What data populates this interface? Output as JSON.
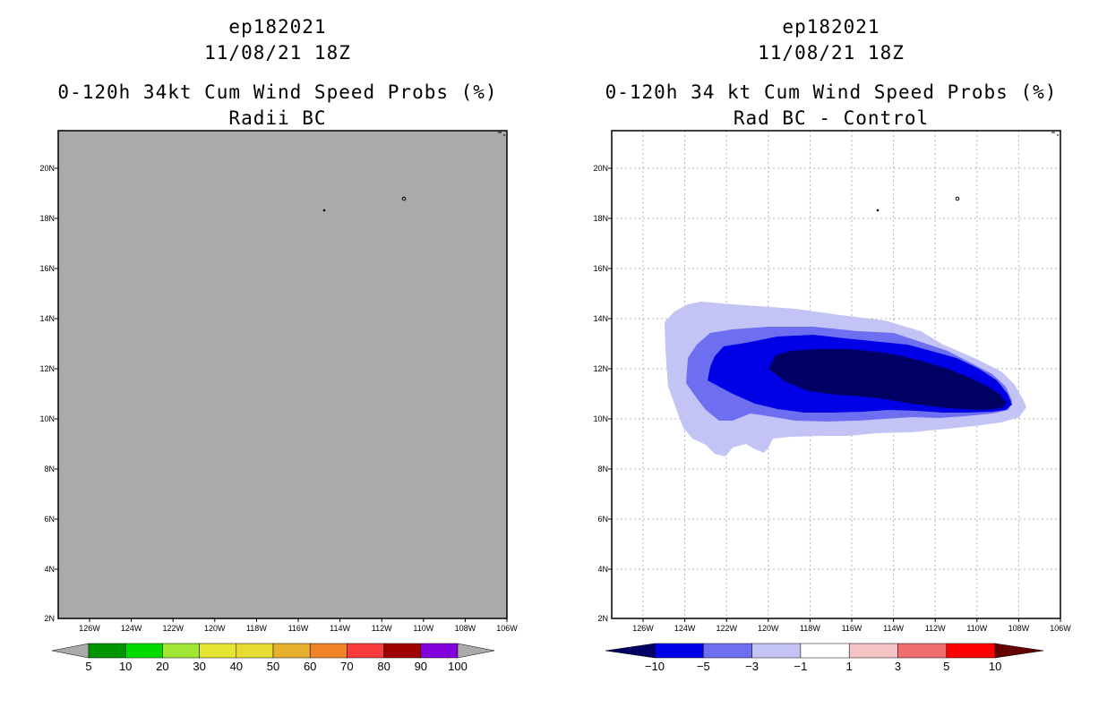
{
  "left": {
    "storm_id": "ep182021",
    "datetime": "11/08/21 18Z",
    "title": "0-120h 34kt Cum Wind Speed Probs (%)",
    "subtitle": "Radii BC",
    "lat_labels": [
      "20N",
      "18N",
      "16N",
      "14N",
      "12N",
      "10N",
      "8N",
      "6N",
      "4N",
      "2N"
    ],
    "lon_labels": [
      "126W",
      "124W",
      "122W",
      "120W",
      "118W",
      "116W",
      "114W",
      "112W",
      "110W",
      "108W",
      "106W"
    ],
    "colorbar": {
      "labels": [
        "5",
        "10",
        "20",
        "30",
        "40",
        "50",
        "60",
        "70",
        "80",
        "90",
        "100"
      ],
      "colors": [
        "#009600",
        "#00dc00",
        "#a0e632",
        "#e6e632",
        "#e6dc32",
        "#e6af2d",
        "#f08228",
        "#fa3c3c",
        "#a00000",
        "#8200dc"
      ],
      "end_color": "#aaaaaa"
    }
  },
  "right": {
    "storm_id": "ep182021",
    "datetime": "11/08/21 18Z",
    "title": "0-120h 34 kt Cum Wind Speed Probs (%)",
    "subtitle": "Rad BC - Control",
    "lat_labels": [
      "20N",
      "18N",
      "16N",
      "14N",
      "12N",
      "10N",
      "8N",
      "6N",
      "4N",
      "2N"
    ],
    "lon_labels": [
      "126W",
      "124W",
      "122W",
      "120W",
      "118W",
      "116W",
      "114W",
      "112W",
      "110W",
      "108W",
      "106W"
    ],
    "colorbar": {
      "labels": [
        "−10",
        "−5",
        "−3",
        "−1",
        "1",
        "3",
        "5",
        "10"
      ],
      "colors": [
        "#0000e6",
        "#6e6ef0",
        "#c3c3f5",
        "#ffffff",
        "#f5c3c3",
        "#f06e6e",
        "#ff0000"
      ],
      "low_color": "#000064",
      "high_color": "#640000"
    }
  },
  "colors": {
    "land_gray": "#aaaaaa",
    "diff_level1": "#c3c3f5",
    "diff_level2": "#6e6ef0",
    "diff_level3": "#0000e6",
    "diff_level4": "#000064"
  }
}
